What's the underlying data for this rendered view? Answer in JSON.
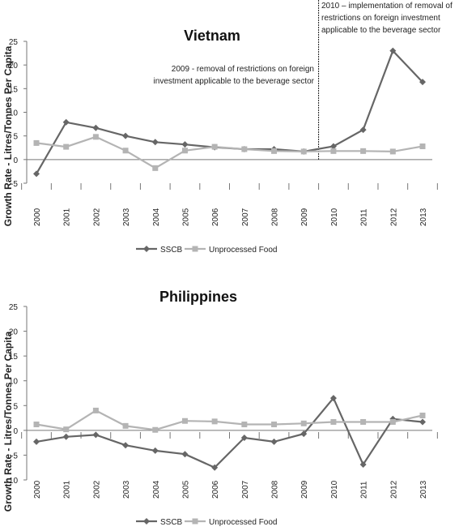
{
  "chart_data": [
    {
      "type": "line",
      "title": "Vietnam",
      "ylabel": "Growth Rate - Litres/Tonnes Per Capita",
      "x": [
        "2000",
        "2001",
        "2002",
        "2003",
        "2004",
        "2005",
        "2006",
        "2007",
        "2008",
        "2009",
        "2010",
        "2011",
        "2012",
        "2013"
      ],
      "yticks": [
        -5,
        0,
        5,
        10,
        15,
        20,
        25
      ],
      "ylim": [
        -5,
        25
      ],
      "series": [
        {
          "name": "SSCB",
          "color": "#666666",
          "marker": "diamond",
          "values": [
            -3.0,
            7.9,
            6.7,
            5.0,
            3.7,
            3.2,
            2.6,
            2.2,
            2.2,
            1.7,
            2.8,
            6.3,
            23.0,
            16.4
          ]
        },
        {
          "name": "Unprocessed Food",
          "color": "#b4b4b4",
          "marker": "square",
          "values": [
            3.5,
            2.7,
            4.8,
            1.9,
            -1.8,
            1.9,
            2.7,
            2.2,
            1.8,
            1.7,
            1.8,
            1.8,
            1.7,
            2.8
          ]
        }
      ],
      "annotations": [
        {
          "text_lines": [
            "2009 -  removal of restrictions on foreign",
            "investment applicable to the beverage sector"
          ]
        },
        {
          "text_lines": [
            "2010 – implementation of removal of",
            "restrictions on foreign investment",
            "applicable to the beverage sector"
          ],
          "marker_between": [
            "2009",
            "2010"
          ]
        }
      ],
      "legend_placement": "bottom-center"
    },
    {
      "type": "line",
      "title": "Philippines",
      "ylabel": "Growth Rate - Litres/Tonnes Per Capita",
      "x": [
        "2000",
        "2001",
        "2002",
        "2003",
        "2004",
        "2005",
        "2006",
        "2007",
        "2008",
        "2009",
        "2010",
        "2011",
        "2012",
        "2013"
      ],
      "yticks": [
        -10,
        -5,
        0,
        5,
        10,
        15,
        20,
        25
      ],
      "ylim": [
        -10,
        25
      ],
      "series": [
        {
          "name": "SSCB",
          "color": "#666666",
          "marker": "diamond",
          "values": [
            -2.3,
            -1.3,
            -0.9,
            -3.0,
            -4.1,
            -4.8,
            -7.5,
            -1.5,
            -2.3,
            -0.7,
            6.5,
            -6.9,
            2.3,
            1.7
          ]
        },
        {
          "name": "Unprocessed Food",
          "color": "#b4b4b4",
          "marker": "square",
          "values": [
            1.2,
            0.2,
            4.0,
            0.9,
            0.1,
            1.9,
            1.8,
            1.2,
            1.2,
            1.4,
            1.7,
            1.7,
            1.7,
            3.0
          ]
        }
      ],
      "legend_placement": "bottom-center"
    }
  ]
}
